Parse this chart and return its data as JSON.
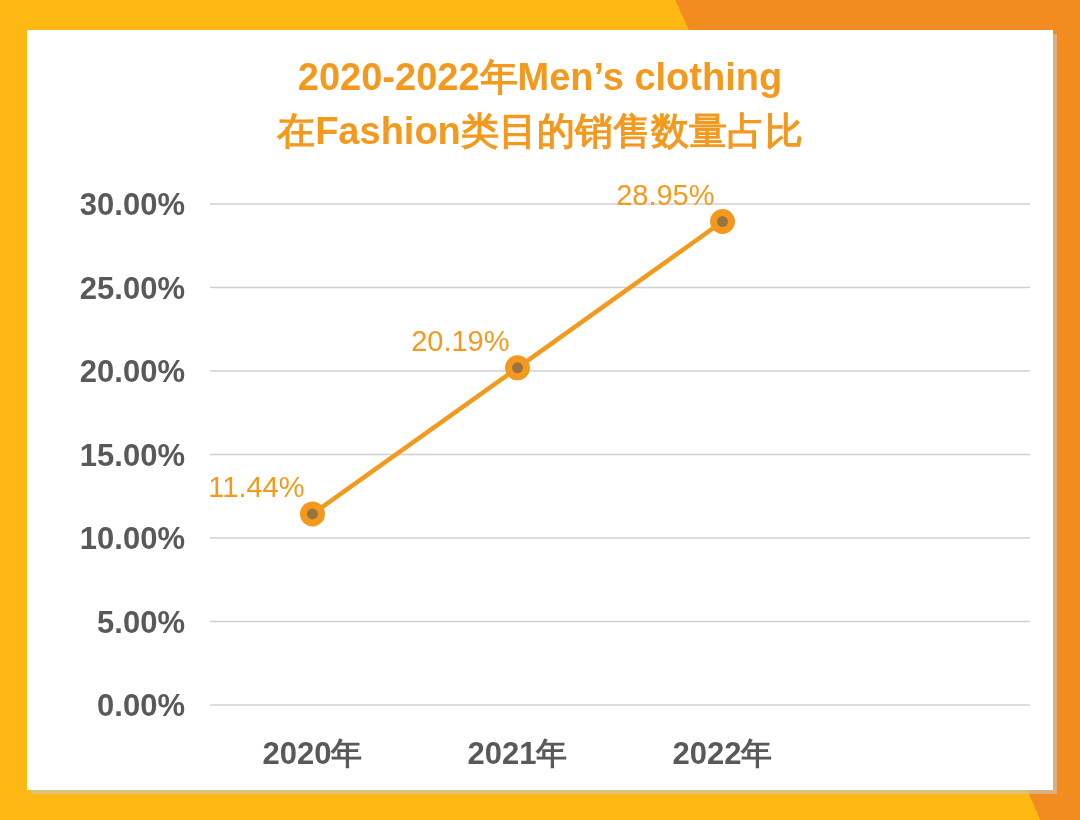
{
  "chart_data": {
    "type": "line",
    "title": "2020-2022年Men’s clothing\n在Fashion类目的销售数量占比",
    "categories": [
      "2020年",
      "2021年",
      "2022年",
      null
    ],
    "series": [
      {
        "color": "#f39a1e",
        "values": [
          11.44,
          20.19,
          28.95,
          null
        ],
        "value_labels": [
          "11.44%",
          "20.19%",
          "28.95%",
          null
        ]
      }
    ],
    "ylim": [
      0,
      30
    ],
    "yticks": [
      {
        "value": 0,
        "label": "0.00%"
      },
      {
        "value": 5,
        "label": "5.00%"
      },
      {
        "value": 10,
        "label": "10.00%"
      },
      {
        "value": 15,
        "label": "15.00%"
      },
      {
        "value": 20,
        "label": "20.00%"
      },
      {
        "value": 25,
        "label": "25.00%"
      },
      {
        "value": 30,
        "label": "30.00%"
      }
    ],
    "grid": "y",
    "marker": "circle",
    "line_style": "solid"
  }
}
